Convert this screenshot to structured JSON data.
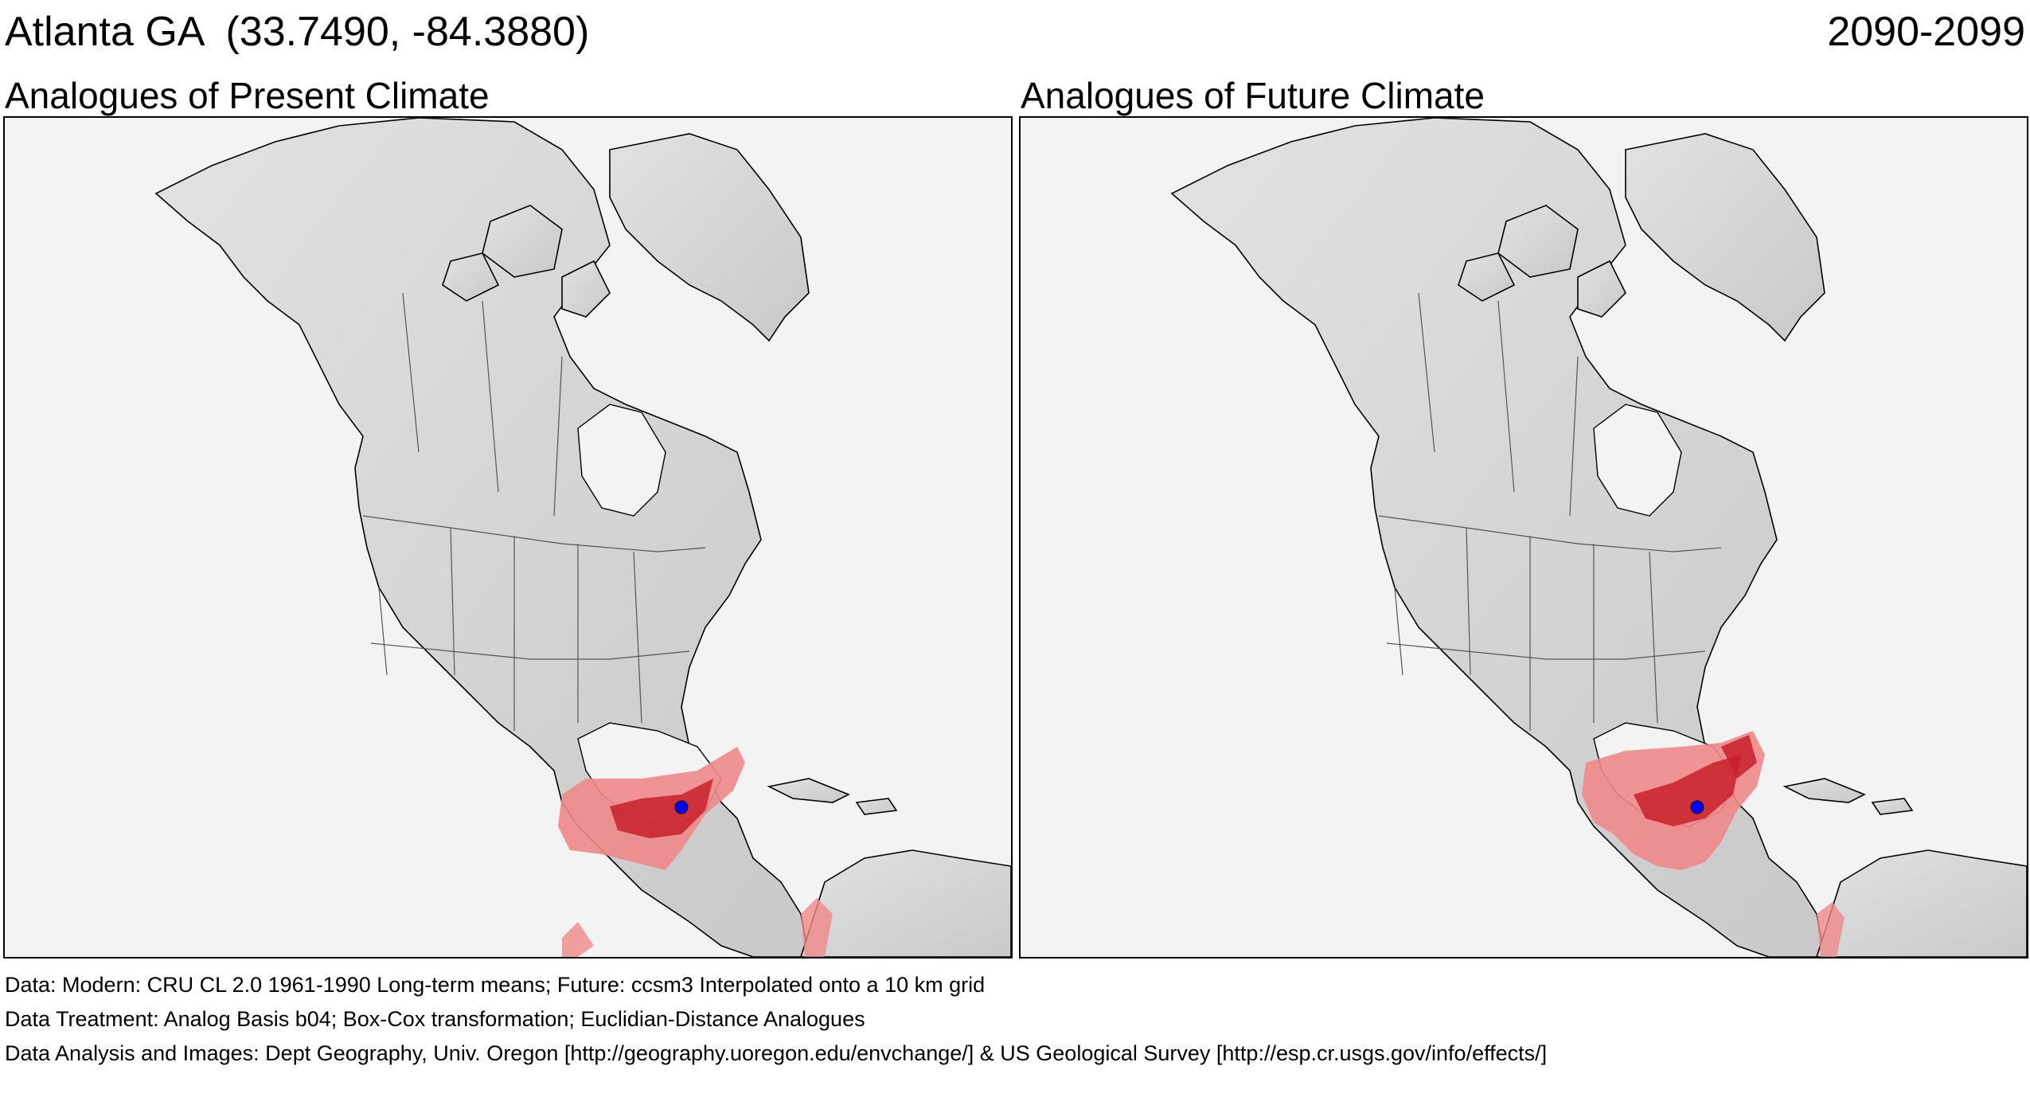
{
  "header": {
    "location_title": "Atlanta GA  (33.7490, -84.3880)",
    "period": "2090-2099"
  },
  "panels": [
    {
      "title": "Analogues of Present Climate"
    },
    {
      "title": "Analogues of Future Climate"
    }
  ],
  "colors": {
    "analogue_strong": "#c8202a",
    "analogue_weak": "#f0888a",
    "location_marker": "#0000ff",
    "land_relief": "#d6d6d6",
    "ocean": "#f3f3f3"
  },
  "footer": {
    "data_line": "Data:  Modern: CRU CL 2.0 1961-1990 Long-term means; Future: ccsm3 Interpolated onto a 10 km grid",
    "treatment_line": "Data Treatment:  Analog Basis b04; Box-Cox transformation; Euclidian-Distance Analogues",
    "credits_line": "Data Analysis and Images:  Dept Geography, Univ. Oregon [http://geography.uoregon.edu/envchange/] & US Geological Survey [http://esp.cr.usgs.gov/info/effects/]"
  }
}
